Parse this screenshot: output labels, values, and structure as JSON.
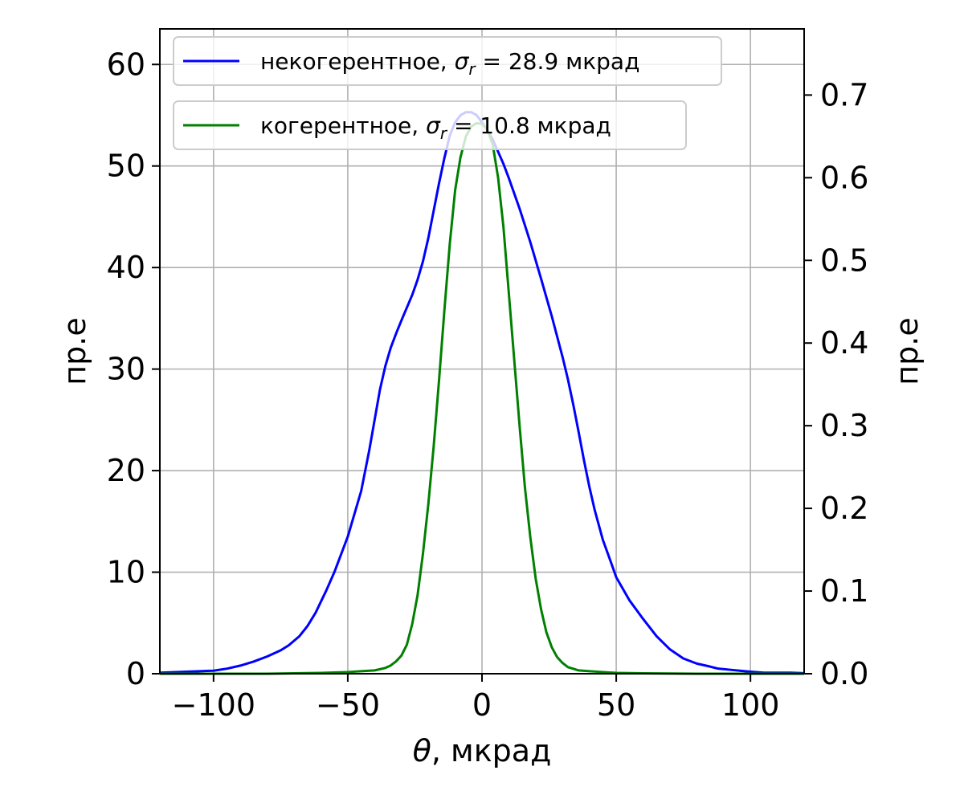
{
  "chart_data": {
    "type": "line",
    "xlabel": "θ, мкрад",
    "ylabel_left": "пр.е",
    "ylabel_right": "пр.е",
    "xlim": [
      -120,
      120
    ],
    "ylim_left": [
      0,
      63.5
    ],
    "ylim_right": [
      0,
      0.78
    ],
    "x_ticks": [
      -100,
      -50,
      0,
      50,
      100
    ],
    "x_tick_labels": [
      "−100",
      "−50",
      "0",
      "50",
      "100"
    ],
    "y_left_ticks": [
      0,
      10,
      20,
      30,
      40,
      50,
      60
    ],
    "y_left_tick_labels": [
      "0",
      "10",
      "20",
      "30",
      "40",
      "50",
      "60"
    ],
    "y_right_ticks": [
      0.0,
      0.1,
      0.2,
      0.3,
      0.4,
      0.5,
      0.6,
      0.7
    ],
    "y_right_tick_labels": [
      "0.0",
      "0.1",
      "0.2",
      "0.3",
      "0.4",
      "0.5",
      "0.6",
      "0.7"
    ],
    "grid": true,
    "legend_placement": "top-left",
    "series": [
      {
        "name": "некогерентное, σr = 28.9 мкрад",
        "legend_prefix": "некогерентное, ",
        "legend_sym": "σ",
        "legend_sub": "r",
        "legend_suffix": " = 28.9 мкрад",
        "color": "#0000ff",
        "axis": "left",
        "x": [
          -120,
          -110,
          -100,
          -95,
          -90,
          -85,
          -80,
          -75,
          -72,
          -68,
          -65,
          -62,
          -58,
          -55,
          -50,
          -45,
          -42,
          -40,
          -38,
          -36,
          -34,
          -32,
          -30,
          -26,
          -24,
          -22,
          -20,
          -18,
          -16,
          -14,
          -12,
          -10,
          -8,
          -6,
          -4,
          -2,
          0,
          2,
          4,
          6,
          8,
          10,
          14,
          18,
          22,
          26,
          30,
          32,
          34,
          36,
          38,
          40,
          42,
          45,
          48,
          50,
          55,
          60,
          65,
          70,
          75,
          80,
          85,
          88,
          92,
          96,
          100,
          105,
          110,
          115,
          120
        ],
        "values": [
          0.1,
          0.2,
          0.3,
          0.5,
          0.8,
          1.2,
          1.7,
          2.3,
          2.8,
          3.7,
          4.7,
          6.0,
          8.2,
          10.0,
          13.5,
          18.0,
          22.0,
          25.0,
          28.0,
          30.3,
          32.1,
          33.5,
          34.8,
          37.3,
          38.8,
          40.6,
          42.9,
          45.6,
          48.3,
          50.8,
          53.0,
          54.3,
          55.0,
          55.3,
          55.3,
          55.0,
          54.3,
          53.5,
          52.6,
          51.4,
          50.2,
          48.8,
          45.8,
          42.5,
          38.9,
          35.2,
          31.2,
          29.0,
          26.5,
          23.8,
          21.0,
          18.4,
          16.1,
          13.2,
          11.0,
          9.5,
          7.2,
          5.4,
          3.7,
          2.4,
          1.5,
          1.0,
          0.7,
          0.5,
          0.4,
          0.3,
          0.2,
          0.1,
          0.1,
          0.1,
          0.05
        ]
      },
      {
        "name": "когерентное, σr = 10.8 мкрад",
        "legend_prefix": "когерентное, ",
        "legend_sym": "σ",
        "legend_sub": "r",
        "legend_suffix": " = 10.8 мкрад",
        "color": "#008000",
        "axis": "right",
        "x": [
          -120,
          -80,
          -60,
          -50,
          -45,
          -40,
          -36,
          -34,
          -32,
          -30,
          -28,
          -26,
          -24,
          -22,
          -20,
          -18,
          -16,
          -14,
          -12,
          -10,
          -8,
          -6,
          -4,
          -2,
          0,
          2,
          4,
          6,
          8,
          10,
          12,
          14,
          16,
          18,
          20,
          22,
          24,
          26,
          28,
          30,
          32,
          34,
          36,
          40,
          45,
          50,
          60,
          80,
          120
        ],
        "values": [
          0.0,
          0.0,
          0.001,
          0.002,
          0.003,
          0.004,
          0.007,
          0.01,
          0.015,
          0.022,
          0.035,
          0.06,
          0.095,
          0.145,
          0.205,
          0.275,
          0.355,
          0.44,
          0.52,
          0.585,
          0.625,
          0.65,
          0.662,
          0.666,
          0.665,
          0.658,
          0.64,
          0.6,
          0.54,
          0.46,
          0.38,
          0.3,
          0.225,
          0.165,
          0.115,
          0.078,
          0.05,
          0.032,
          0.02,
          0.013,
          0.008,
          0.006,
          0.004,
          0.003,
          0.002,
          0.001,
          0.0005,
          0.0,
          0.0
        ]
      }
    ]
  }
}
